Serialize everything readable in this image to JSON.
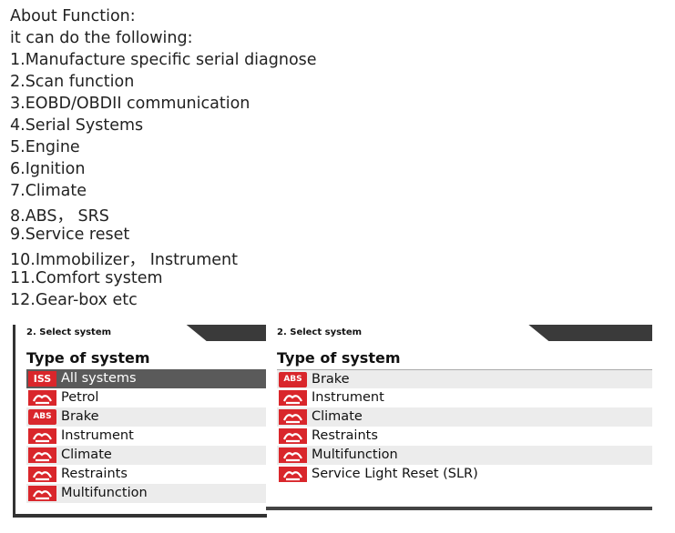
{
  "intro": {
    "lines": [
      "About Function:",
      "it can do the following:",
      "1.Manufacture specific serial diagnose",
      "2.Scan function",
      "3.EOBD/OBDII communication",
      "4.Serial Systems",
      "5.Engine",
      "6.Ignition",
      "7.Climate",
      "8.ABS， SRS",
      "9.Service reset",
      "10.Immobilizer， Instrument",
      "11.Comfort system",
      "12.Gear-box etc"
    ]
  },
  "panels": [
    {
      "step": "2. Select system",
      "heading": "Type of system",
      "selected": 0,
      "items": [
        {
          "icon_text": "ISS",
          "label": "All systems"
        },
        {
          "label": "Petrol"
        },
        {
          "icon_text": "ABS",
          "label": "Brake"
        },
        {
          "label": "Instrument"
        },
        {
          "label": "Climate"
        },
        {
          "label": "Restraints"
        },
        {
          "label": "Multifunction"
        }
      ]
    },
    {
      "step": "2. Select system",
      "heading": "Type of system",
      "items": [
        {
          "icon_text": "ABS",
          "label": "Brake"
        },
        {
          "label": "Instrument"
        },
        {
          "label": "Climate"
        },
        {
          "label": "Restraints"
        },
        {
          "label": "Multifunction"
        },
        {
          "label": "Service Light Reset (SLR)"
        }
      ]
    }
  ]
}
